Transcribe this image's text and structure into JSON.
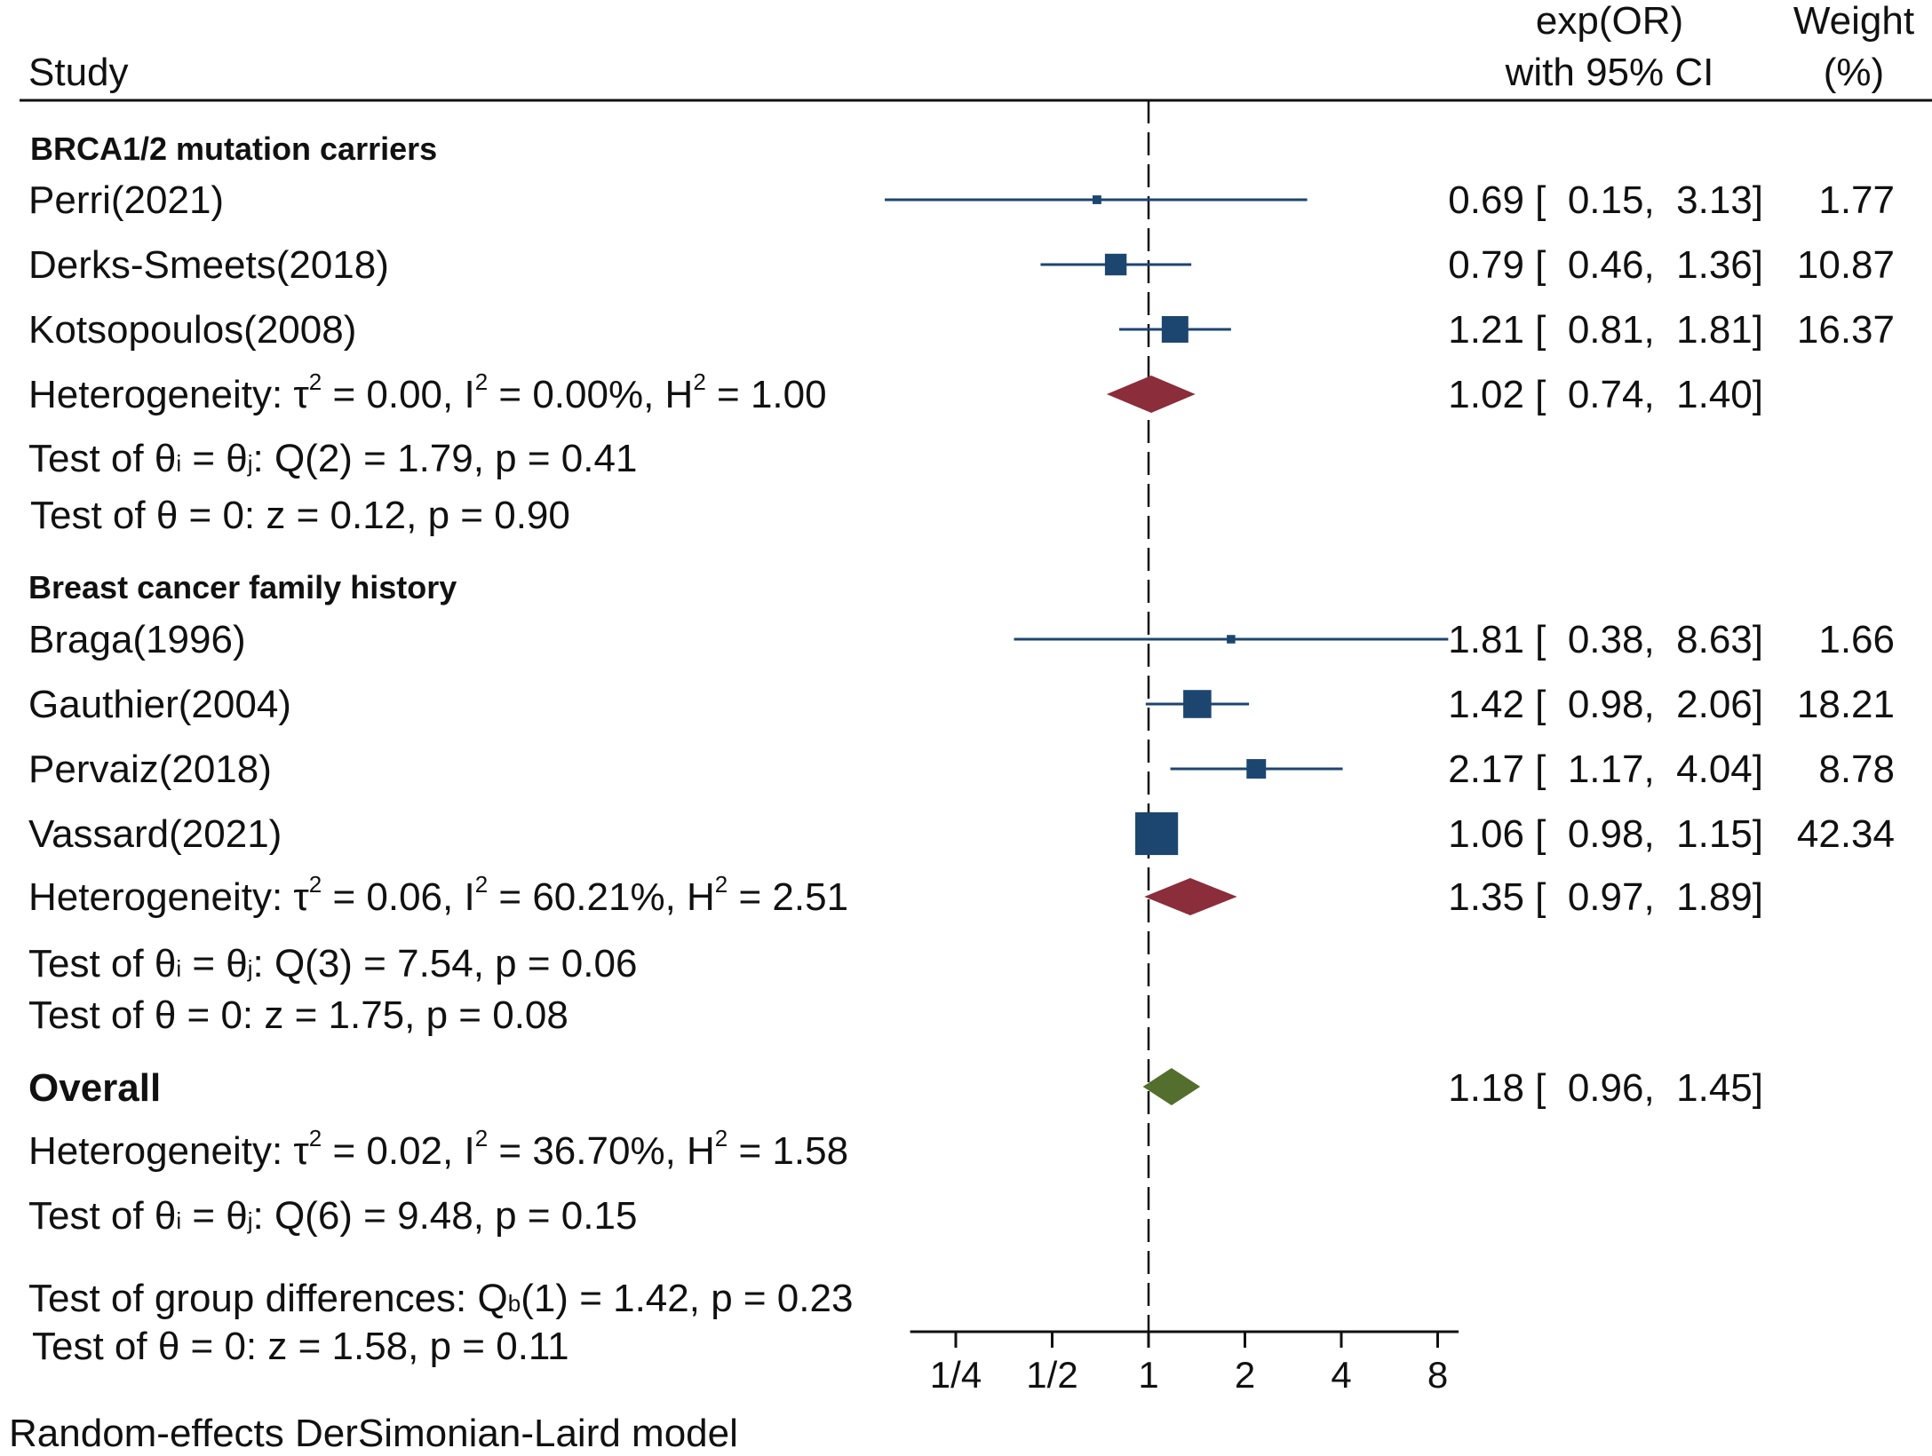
{
  "chart_data": {
    "type": "forest",
    "x_scale": "log2",
    "xlim": [
      0.18,
      9.3
    ],
    "null_value": 1,
    "headers": {
      "study": "Study",
      "effect_line1": "exp(OR)",
      "effect_line2": "with 95% CI",
      "weight_line1": "Weight",
      "weight_line2": "(%)"
    },
    "axis_ticks": [
      {
        "value": 0.25,
        "label": "1/4"
      },
      {
        "value": 0.5,
        "label": "1/2"
      },
      {
        "value": 1,
        "label": "1"
      },
      {
        "value": 2,
        "label": "2"
      },
      {
        "value": 4,
        "label": "4"
      },
      {
        "value": 8,
        "label": "8"
      }
    ],
    "groups": [
      {
        "name": "BRCA1/2 mutation carriers",
        "studies": [
          {
            "study": "Perri(2021)",
            "or": 0.69,
            "lo": 0.15,
            "hi": 3.13,
            "ci_text": "0.69 [  0.15,  3.13]",
            "weight": 1.77,
            "weight_text": "1.77"
          },
          {
            "study": "Derks-Smeets(2018)",
            "or": 0.79,
            "lo": 0.46,
            "hi": 1.36,
            "ci_text": "0.79 [  0.46,  1.36]",
            "weight": 10.87,
            "weight_text": "10.87"
          },
          {
            "study": "Kotsopoulos(2008)",
            "or": 1.21,
            "lo": 0.81,
            "hi": 1.81,
            "ci_text": "1.21 [  0.81,  1.81]",
            "weight": 16.37,
            "weight_text": "16.37"
          }
        ],
        "subtotal": {
          "or": 1.02,
          "lo": 0.74,
          "hi": 1.4,
          "ci_text": "1.02 [  0.74,  1.40]"
        },
        "heterogeneity": {
          "prefix": "Heterogeneity: τ",
          "tau2": " = 0.00, I",
          "i2": " = 0.00%, H",
          "h2": " = 1.00"
        },
        "test_q": {
          "prefix": "Test of θ",
          "sub_i": "i",
          "mid": " = θ",
          "sub_j": "j",
          "rest": ": Q(2) = 1.79, p = 0.41"
        },
        "test_z": "Test of θ = 0: z = 0.12, p = 0.90"
      },
      {
        "name": "Breast cancer family history",
        "studies": [
          {
            "study": "Braga(1996)",
            "or": 1.81,
            "lo": 0.38,
            "hi": 8.63,
            "ci_text": "1.81 [  0.38,  8.63]",
            "weight": 1.66,
            "weight_text": "1.66"
          },
          {
            "study": "Gauthier(2004)",
            "or": 1.42,
            "lo": 0.98,
            "hi": 2.06,
            "ci_text": "1.42 [  0.98,  2.06]",
            "weight": 18.21,
            "weight_text": "18.21"
          },
          {
            "study": "Pervaiz(2018)",
            "or": 2.17,
            "lo": 1.17,
            "hi": 4.04,
            "ci_text": "2.17 [  1.17,  4.04]",
            "weight": 8.78,
            "weight_text": "8.78"
          },
          {
            "study": "Vassard(2021)",
            "or": 1.06,
            "lo": 0.98,
            "hi": 1.15,
            "ci_text": "1.06 [  0.98,  1.15]",
            "weight": 42.34,
            "weight_text": "42.34"
          }
        ],
        "subtotal": {
          "or": 1.35,
          "lo": 0.97,
          "hi": 1.89,
          "ci_text": "1.35 [  0.97,  1.89]"
        },
        "heterogeneity": {
          "prefix": "Heterogeneity: τ",
          "tau2": " = 0.06, I",
          "i2": " = 60.21%, H",
          "h2": " = 2.51"
        },
        "test_q": {
          "prefix": "Test of θ",
          "sub_i": "i",
          "mid": " = θ",
          "sub_j": "j",
          "rest": ": Q(3) = 7.54, p = 0.06"
        },
        "test_z": "Test of θ = 0: z = 1.75, p = 0.08"
      }
    ],
    "overall": {
      "label": "Overall",
      "or": 1.18,
      "lo": 0.96,
      "hi": 1.45,
      "ci_text": "1.18 [  0.96,  1.45]",
      "heterogeneity": {
        "prefix": "Heterogeneity: τ",
        "tau2": " = 0.02, I",
        "i2": " = 36.70%, H",
        "h2": " = 1.58"
      },
      "test_q": {
        "prefix": "Test of θ",
        "sub_i": "i",
        "mid": " = θ",
        "sub_j": "j",
        "rest": ": Q(6) = 9.48, p = 0.15"
      },
      "test_group": {
        "prefix": "Test of group differences: Q",
        "sub_b": "b",
        "rest": "(1) = 1.42, p = 0.23"
      },
      "test_z": "Test of θ = 0: z = 1.58, p = 0.11"
    },
    "superscript": "2",
    "footnote": "Random-effects DerSimonian-Laird model",
    "colors": {
      "study_marker": "#1c4670",
      "ci_line": "#1c4670",
      "subgroup_diamond": "#8b2d3a",
      "overall_diamond": "#546e2e",
      "text": "#111111",
      "axis": "#111111"
    }
  }
}
